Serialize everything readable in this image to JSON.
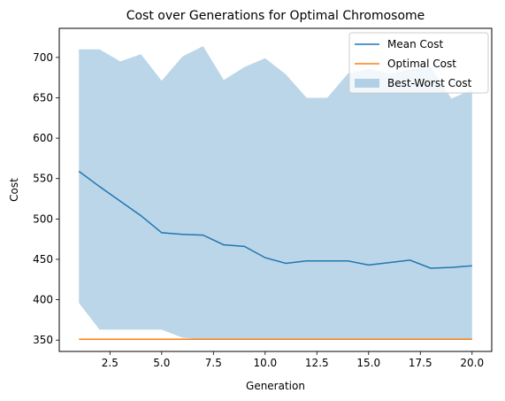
{
  "chart_data": {
    "type": "line",
    "title": "Cost over Generations for Optimal Chromosome",
    "xlabel": "Generation",
    "ylabel": "Cost",
    "xlim": [
      0.05,
      20.95
    ],
    "ylim": [
      336,
      736
    ],
    "xticks": [
      2.5,
      5.0,
      7.5,
      10.0,
      12.5,
      15.0,
      17.5,
      20.0
    ],
    "xtick_labels": [
      "2.5",
      "5.0",
      "7.5",
      "10.0",
      "12.5",
      "15.0",
      "17.5",
      "20.0"
    ],
    "yticks": [
      350,
      400,
      450,
      500,
      550,
      600,
      650,
      700
    ],
    "ytick_labels": [
      "350",
      "400",
      "450",
      "500",
      "550",
      "600",
      "650",
      "700"
    ],
    "grid": false,
    "legend_position": "top-right",
    "x": [
      1,
      2,
      3,
      4,
      5,
      6,
      7,
      8,
      9,
      10,
      11,
      12,
      13,
      14,
      15,
      16,
      17,
      18,
      19,
      20
    ],
    "series": [
      {
        "name": "Mean Cost",
        "kind": "line",
        "color": "#1f77b4",
        "values": [
          559,
          540,
          522,
          504,
          483,
          481,
          480,
          468,
          466,
          452,
          445,
          448,
          448,
          448,
          443,
          446,
          449,
          439,
          440,
          442
        ]
      },
      {
        "name": "Optimal Cost",
        "kind": "line",
        "color": "#ff7f0e",
        "values": [
          351,
          351,
          351,
          351,
          351,
          351,
          351,
          351,
          351,
          351,
          351,
          351,
          351,
          351,
          351,
          351,
          351,
          351,
          351,
          351
        ]
      },
      {
        "name": "Best-Worst Cost",
        "kind": "band",
        "color": "#1f77b4",
        "opacity": 0.3,
        "lower": [
          396,
          363,
          363,
          363,
          363,
          353,
          351,
          351,
          351,
          351,
          351,
          351,
          351,
          351,
          351,
          351,
          351,
          351,
          351,
          351
        ],
        "upper": [
          710,
          710,
          695,
          704,
          671,
          701,
          714,
          672,
          688,
          699,
          679,
          650,
          650,
          680,
          686,
          680,
          685,
          688,
          649,
          660
        ]
      }
    ]
  }
}
